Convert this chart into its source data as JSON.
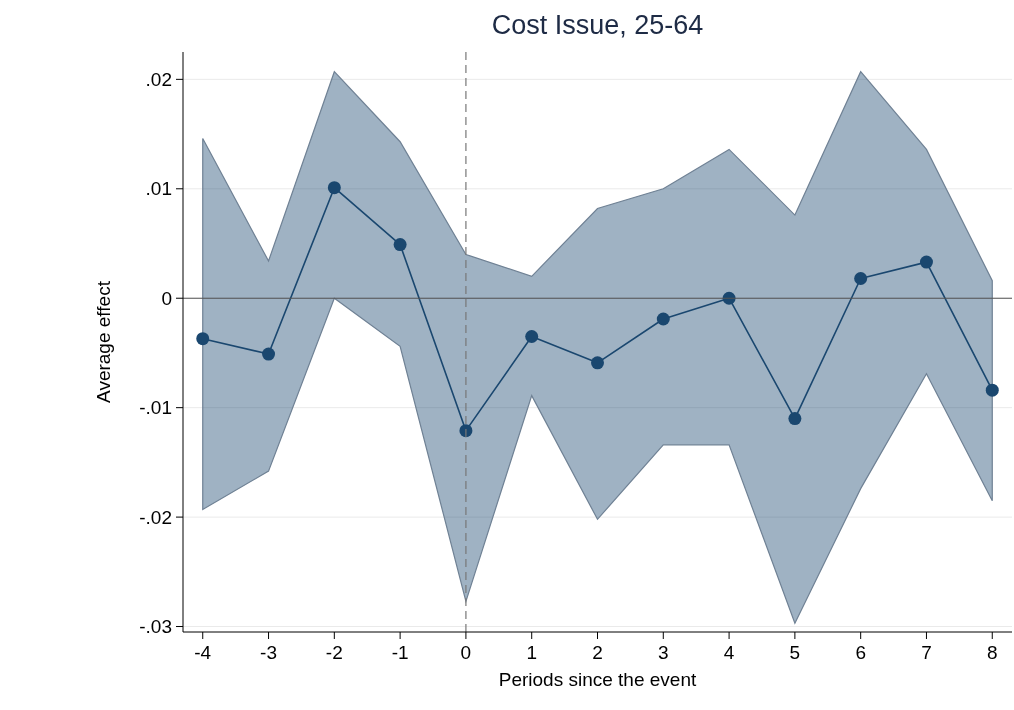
{
  "chart_data": {
    "type": "line",
    "title": "Cost Issue, 25-64",
    "xlabel": "Periods since the event",
    "ylabel": "Average effect",
    "x": [
      -4,
      -3,
      -2,
      -1,
      0,
      1,
      2,
      3,
      4,
      5,
      6,
      7,
      8
    ],
    "series": [
      {
        "color": "#1a476f",
        "values": [
          -0.0037,
          -0.0051,
          0.0101,
          0.0049,
          -0.0121,
          -0.0035,
          -0.0059,
          -0.0019,
          0,
          -0.011,
          0.0018,
          0.0033,
          -0.0084
        ],
        "lower": [
          -0.0193,
          -0.0158,
          0,
          -0.0044,
          -0.0277,
          -0.0089,
          -0.0202,
          -0.0134,
          -0.0134,
          -0.0297,
          -0.0174,
          -0.0069,
          -0.0185
        ],
        "upper": [
          0.0146,
          0.0034,
          0.0207,
          0.0143,
          0.004,
          0.002,
          0.0082,
          0.01,
          0.0136,
          0.0076,
          0.0207,
          0.0136,
          0.0016
        ]
      }
    ],
    "xlim": [
      -4.3,
      8.3
    ],
    "xticks": [
      -4,
      -3,
      -2,
      -1,
      0,
      1,
      2,
      3,
      4,
      5,
      6,
      7,
      8
    ],
    "ylim": [
      -0.0305,
      0.0225
    ],
    "yticks": [
      {
        "value": -0.03,
        "label": "-.03"
      },
      {
        "value": -0.02,
        "label": "-.02"
      },
      {
        "value": -0.01,
        "label": "-.01"
      },
      {
        "value": 0,
        "label": "0"
      },
      {
        "value": 0.01,
        "label": ".01"
      },
      {
        "value": 0.02,
        "label": ".02"
      }
    ],
    "grid": "y",
    "marker": "circle",
    "line_style": "solid",
    "ref_lines": [
      {
        "axis": "x",
        "value": 0,
        "color": "#777777",
        "line_style": "dashed"
      },
      {
        "axis": "y",
        "value": 0,
        "color": "#555555",
        "line_style": "solid"
      }
    ]
  }
}
